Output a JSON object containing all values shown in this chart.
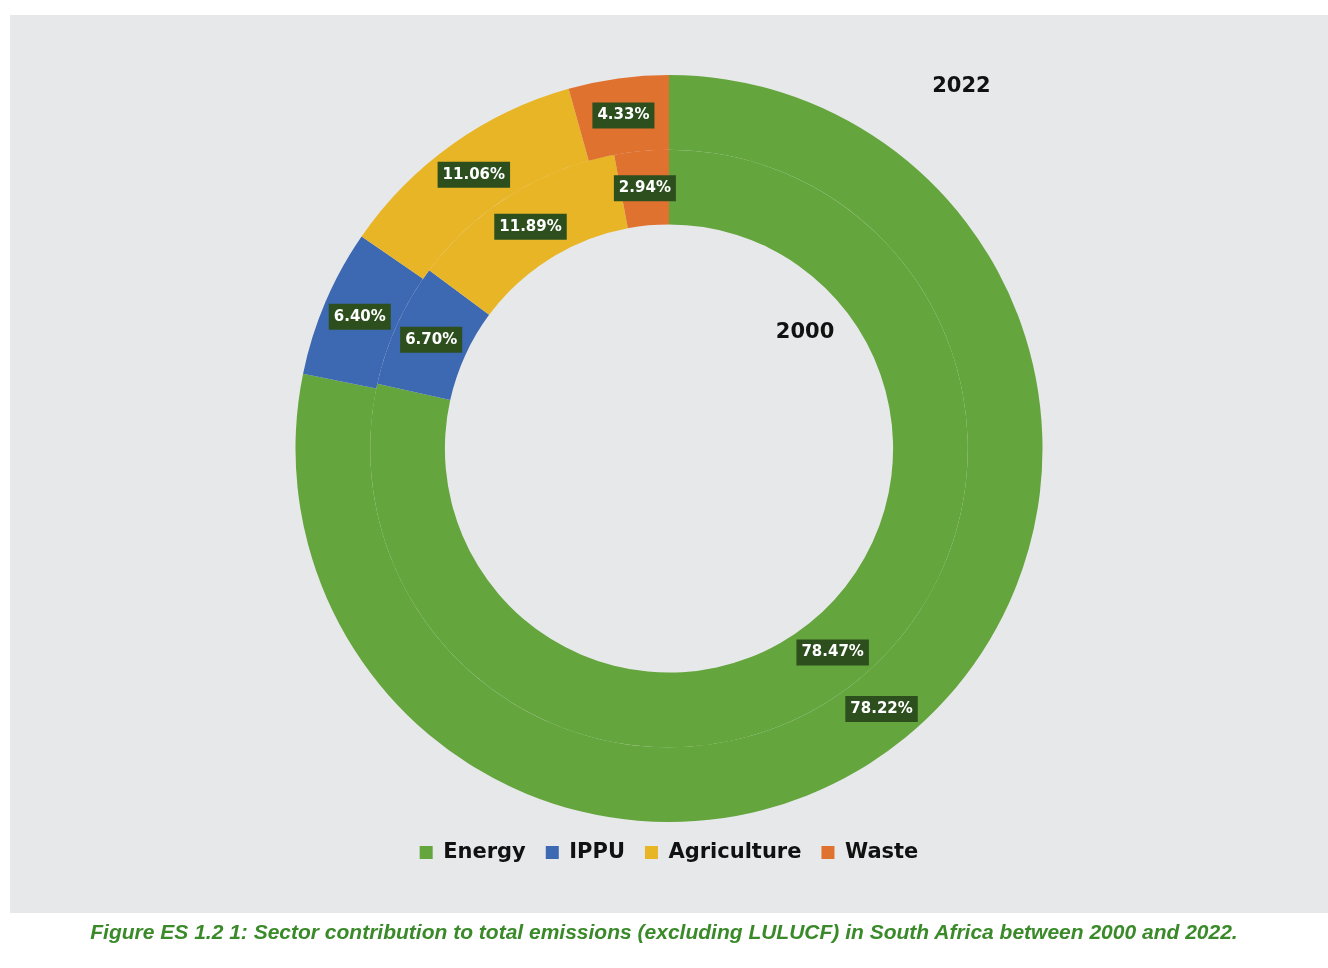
{
  "chart_data": {
    "type": "donut",
    "categories": [
      "Energy",
      "IPPU",
      "Agriculture",
      "Waste"
    ],
    "colors": [
      "#64a53d",
      "#3d68b2",
      "#e8b526",
      "#e07230"
    ],
    "series": [
      {
        "name": "2000",
        "values": [
          78.47,
          6.7,
          11.89,
          2.94
        ],
        "value_labels": [
          "78.47%",
          "6.70%",
          "11.89%",
          "2.94%"
        ]
      },
      {
        "name": "2022",
        "values": [
          78.22,
          6.4,
          11.06,
          4.33
        ],
        "value_labels": [
          "78.22%",
          "6.40%",
          "11.06%",
          "4.33%"
        ]
      }
    ],
    "legend": "bottom",
    "annotations": [
      "Figure ES 1.2 1: Sector contribution to total emissions (excluding LULUCF) in South Africa between 2000 and 2022."
    ]
  }
}
